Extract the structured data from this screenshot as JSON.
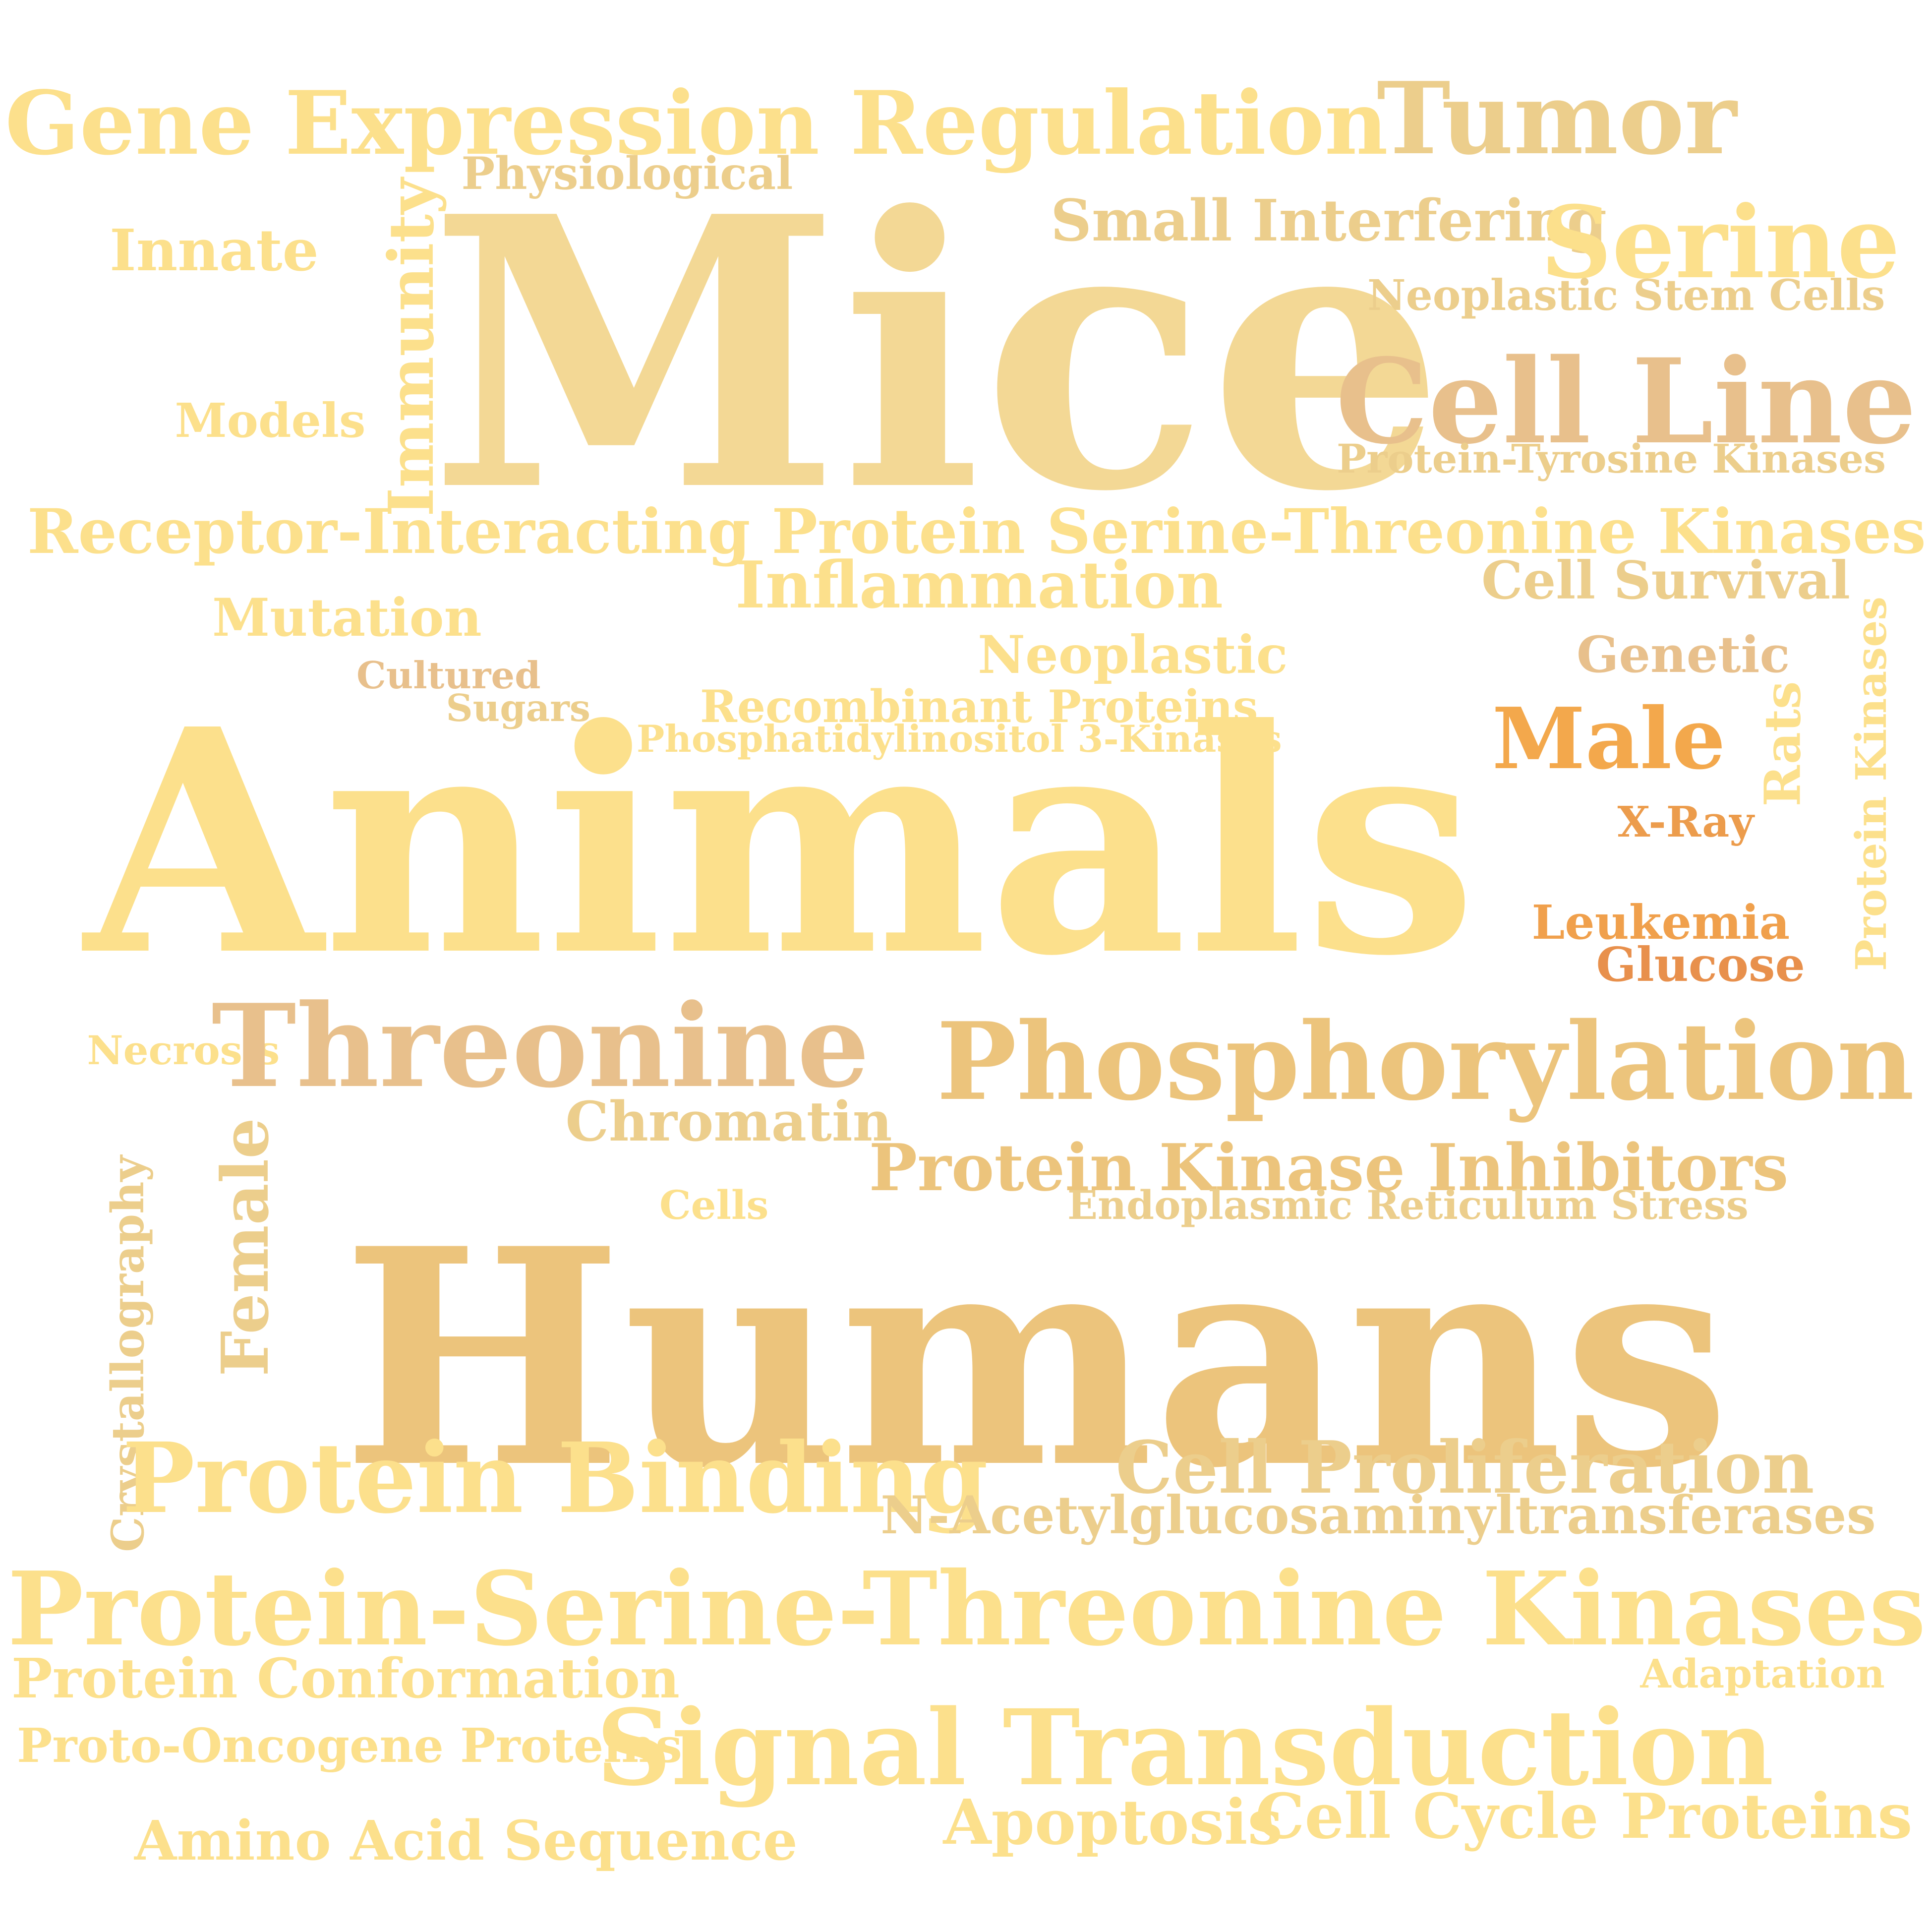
{
  "words": [
    {
      "text": "Gene Expression Regulation",
      "color": "#fce08c"
    },
    {
      "text": "Tumor",
      "color": "#ecce8c"
    },
    {
      "text": "Physiological",
      "color": "#ecce8c"
    },
    {
      "text": "Small Interfering",
      "color": "#ecce8c"
    },
    {
      "text": "Serine",
      "color": "#fce08c"
    },
    {
      "text": "Innate",
      "color": "#fce08c"
    },
    {
      "text": "Immunity",
      "color": "#fce08c"
    },
    {
      "text": "Mice",
      "color": "#f3d895"
    },
    {
      "text": "Neoplastic Stem Cells",
      "color": "#ecce8c"
    },
    {
      "text": "Cell Line",
      "color": "#e8c08c"
    },
    {
      "text": "Models",
      "color": "#fce08c"
    },
    {
      "text": "Protein-Tyrosine Kinases",
      "color": "#ecce8c"
    },
    {
      "text": "Receptor-Interacting Protein Serine-Threonine Kinases",
      "color": "#fce08c"
    },
    {
      "text": "Inflammation",
      "color": "#fce08c"
    },
    {
      "text": "Cell Survival",
      "color": "#ecce8c"
    },
    {
      "text": "Mutation",
      "color": "#fce08c"
    },
    {
      "text": "Neoplastic",
      "color": "#fce08c"
    },
    {
      "text": "Genetic",
      "color": "#e8c08c"
    },
    {
      "text": "Protein Kinases",
      "color": "#fce08c"
    },
    {
      "text": "Cultured",
      "color": "#e8c08c"
    },
    {
      "text": "Sugars",
      "color": "#ecce8c"
    },
    {
      "text": "Recombinant Proteins",
      "color": "#fce08c"
    },
    {
      "text": "Phosphatidylinositol 3-Kinases",
      "color": "#fce08c"
    },
    {
      "text": "Male",
      "color": "#f3a84c"
    },
    {
      "text": "Rats",
      "color": "#fce08c"
    },
    {
      "text": "Animals",
      "color": "#fce08c"
    },
    {
      "text": "X-Ray",
      "color": "#ec9c4c"
    },
    {
      "text": "Leukemia",
      "color": "#f0a04c"
    },
    {
      "text": "Glucose",
      "color": "#e8904c"
    },
    {
      "text": "Necrosis",
      "color": "#fce08c"
    },
    {
      "text": "Threonine",
      "color": "#e8c08c"
    },
    {
      "text": "Phosphorylation",
      "color": "#ecc47c"
    },
    {
      "text": "Chromatin",
      "color": "#ecce8c"
    },
    {
      "text": "Protein Kinase Inhibitors",
      "color": "#ecc47c"
    },
    {
      "text": "Female",
      "color": "#ecce8c"
    },
    {
      "text": "Crystallography",
      "color": "#ecce8c"
    },
    {
      "text": "Cells",
      "color": "#fce08c"
    },
    {
      "text": "Endoplasmic Reticulum Stress",
      "color": "#ecce8c"
    },
    {
      "text": "Humans",
      "color": "#ecc47c"
    },
    {
      "text": "Protein Binding",
      "color": "#fce08c"
    },
    {
      "text": "Cell Proliferation",
      "color": "#ecce8c"
    },
    {
      "text": "N-Acetylglucosaminyltransferases",
      "color": "#ecce8c"
    },
    {
      "text": "Protein-Serine-Threonine Kinases",
      "color": "#fce08c"
    },
    {
      "text": "Protein Conformation",
      "color": "#fce08c"
    },
    {
      "text": "Adaptation",
      "color": "#fce08c"
    },
    {
      "text": "Proto-Oncogene Proteins",
      "color": "#fce08c"
    },
    {
      "text": "Signal Transduction",
      "color": "#fce08c"
    },
    {
      "text": "Apoptosis",
      "color": "#fce08c"
    },
    {
      "text": "Cell Cycle Proteins",
      "color": "#fce08c"
    },
    {
      "text": "Amino Acid Sequence",
      "color": "#fce08c"
    }
  ]
}
